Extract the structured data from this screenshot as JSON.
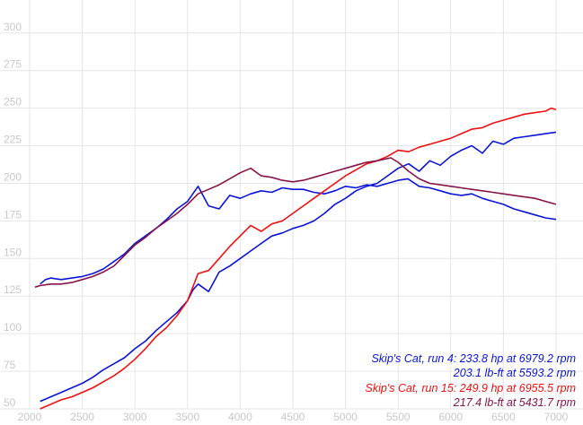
{
  "chart_data": {
    "type": "line",
    "xlim": [
      2000,
      7000
    ],
    "ylim": [
      50,
      310
    ],
    "x_ticks": [
      2000,
      2500,
      3000,
      3500,
      4000,
      4500,
      5000,
      5500,
      6000,
      6500,
      7000
    ],
    "y_ticks": [
      50,
      75,
      100,
      125,
      150,
      175,
      200,
      225,
      250,
      275,
      300
    ],
    "grid": true,
    "legend_position": "bottom-right",
    "series": [
      {
        "name": "Skip's Cat, run 4: 233.8 hp at 6979.2 rpm",
        "color": "#0a14d8",
        "x": [
          2100,
          2200,
          2300,
          2400,
          2500,
          2600,
          2700,
          2800,
          2900,
          3000,
          3100,
          3200,
          3300,
          3400,
          3500,
          3550,
          3600,
          3700,
          3800,
          3900,
          4000,
          4100,
          4200,
          4300,
          4400,
          4500,
          4600,
          4700,
          4800,
          4900,
          5000,
          5100,
          5200,
          5300,
          5400,
          5500,
          5600,
          5700,
          5800,
          5900,
          6000,
          6100,
          6200,
          6300,
          6400,
          6500,
          6600,
          6700,
          6800,
          6900,
          7000
        ],
        "y": [
          55,
          58,
          61,
          64,
          67,
          71,
          76,
          80,
          84,
          90,
          95,
          102,
          108,
          114,
          122,
          129,
          133,
          128,
          141,
          145,
          150,
          155,
          160,
          165,
          167,
          170,
          172,
          175,
          180,
          186,
          190,
          195,
          198,
          200,
          205,
          210,
          213,
          208,
          215,
          212,
          218,
          222,
          225,
          220,
          228,
          226,
          230,
          231,
          232,
          233,
          234
        ]
      },
      {
        "name": "203.1 lb-ft at 5593.2 rpm",
        "color": "#0a14d8",
        "x": [
          2100,
          2150,
          2200,
          2300,
          2400,
          2500,
          2600,
          2700,
          2800,
          2900,
          3000,
          3100,
          3200,
          3300,
          3400,
          3500,
          3600,
          3700,
          3800,
          3900,
          4000,
          4100,
          4200,
          4300,
          4400,
          4500,
          4600,
          4700,
          4800,
          4900,
          5000,
          5100,
          5200,
          5300,
          5400,
          5500,
          5593,
          5700,
          5800,
          5900,
          6000,
          6100,
          6200,
          6300,
          6400,
          6500,
          6600,
          6700,
          6800,
          6900,
          7000
        ],
        "y": [
          133,
          136,
          137,
          136,
          137,
          138,
          140,
          143,
          148,
          153,
          160,
          165,
          170,
          176,
          183,
          188,
          198,
          185,
          183,
          192,
          190,
          193,
          195,
          194,
          197,
          196,
          196,
          194,
          193,
          195,
          198,
          197,
          199,
          198,
          200,
          202,
          203,
          198,
          197,
          195,
          193,
          192,
          193,
          190,
          188,
          186,
          183,
          181,
          179,
          177,
          176
        ]
      },
      {
        "name": "Skip's Cat, run 15: 249.9 hp at 6955.5 rpm",
        "color": "#f01010",
        "x": [
          2100,
          2200,
          2300,
          2400,
          2500,
          2600,
          2700,
          2800,
          2900,
          3000,
          3100,
          3200,
          3300,
          3400,
          3500,
          3600,
          3700,
          3800,
          3900,
          4000,
          4100,
          4200,
          4300,
          4400,
          4500,
          4600,
          4700,
          4800,
          4900,
          5000,
          5100,
          5200,
          5300,
          5400,
          5500,
          5600,
          5700,
          5800,
          5900,
          6000,
          6100,
          6200,
          6300,
          6400,
          6500,
          6600,
          6700,
          6800,
          6900,
          6955,
          7000
        ],
        "y": [
          50,
          53,
          56,
          58,
          61,
          64,
          68,
          72,
          77,
          83,
          90,
          98,
          104,
          112,
          122,
          140,
          142,
          150,
          158,
          165,
          172,
          168,
          173,
          175,
          180,
          185,
          190,
          195,
          200,
          205,
          209,
          213,
          215,
          218,
          222,
          221,
          224,
          226,
          228,
          230,
          233,
          236,
          237,
          240,
          242,
          244,
          246,
          247,
          248,
          250,
          249
        ]
      },
      {
        "name": "217.4 lb-ft at 5431.7 rpm",
        "color": "#88124a",
        "x": [
          2050,
          2100,
          2200,
          2300,
          2400,
          2500,
          2600,
          2700,
          2800,
          2900,
          3000,
          3100,
          3200,
          3300,
          3400,
          3500,
          3600,
          3700,
          3800,
          3900,
          4000,
          4100,
          4200,
          4300,
          4400,
          4500,
          4600,
          4700,
          4800,
          4900,
          5000,
          5100,
          5200,
          5300,
          5431,
          5500,
          5600,
          5700,
          5800,
          5900,
          6000,
          6100,
          6200,
          6300,
          6400,
          6500,
          6600,
          6700,
          6800,
          6900,
          7000
        ],
        "y": [
          131,
          132,
          133,
          133,
          134,
          136,
          138,
          141,
          145,
          152,
          159,
          164,
          170,
          175,
          180,
          186,
          193,
          196,
          199,
          203,
          207,
          210,
          205,
          204,
          202,
          201,
          202,
          204,
          206,
          208,
          210,
          212,
          214,
          215,
          217,
          214,
          208,
          203,
          200,
          199,
          198,
          197,
          196,
          195,
          194,
          193,
          192,
          191,
          190,
          188,
          186
        ]
      }
    ]
  },
  "legend": [
    {
      "text": "Skip's Cat, run 4: 233.8 hp at 6979.2 rpm",
      "color": "#0a14d8"
    },
    {
      "text": "203.1 lb-ft at 5593.2 rpm",
      "color": "#0a14d8"
    },
    {
      "text": "Skip's Cat, run 15: 249.9 hp at 6955.5 rpm",
      "color": "#f01010"
    },
    {
      "text": "217.4 lb-ft at 5431.7 rpm",
      "color": "#88124a"
    }
  ]
}
